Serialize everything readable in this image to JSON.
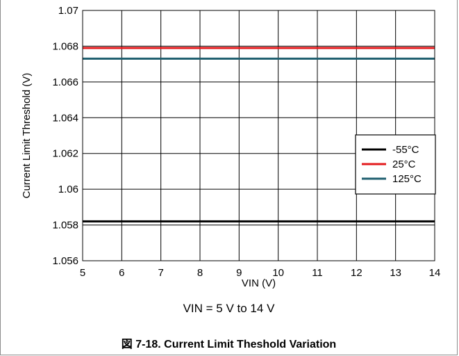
{
  "chart_data": {
    "type": "line",
    "xlabel": "VIN (V)",
    "ylabel": "Current Limit Threshold (V)",
    "xlim": [
      5,
      14
    ],
    "ylim": [
      1.056,
      1.07
    ],
    "x_ticks": [
      "5",
      "6",
      "7",
      "8",
      "9",
      "10",
      "11",
      "12",
      "13",
      "14"
    ],
    "y_ticks": [
      "1.056",
      "1.058",
      "1.06",
      "1.062",
      "1.064",
      "1.066",
      "1.068",
      "1.07"
    ],
    "grid": true,
    "legend_position": "right",
    "series": [
      {
        "name": "-55°C",
        "color": "#000000",
        "x": [
          5,
          14
        ],
        "y": [
          1.0582,
          1.0582
        ]
      },
      {
        "name": "25°C",
        "color": "#e31a1c",
        "x": [
          5,
          14
        ],
        "y": [
          1.0679,
          1.0679
        ]
      },
      {
        "name": "125°C",
        "color": "#1f5f6f",
        "x": [
          5,
          14
        ],
        "y": [
          1.0673,
          1.0673
        ]
      }
    ]
  },
  "condition": "VIN = 5 V to 14 V",
  "caption": "図 7-18. Current Limit Theshold Variation"
}
